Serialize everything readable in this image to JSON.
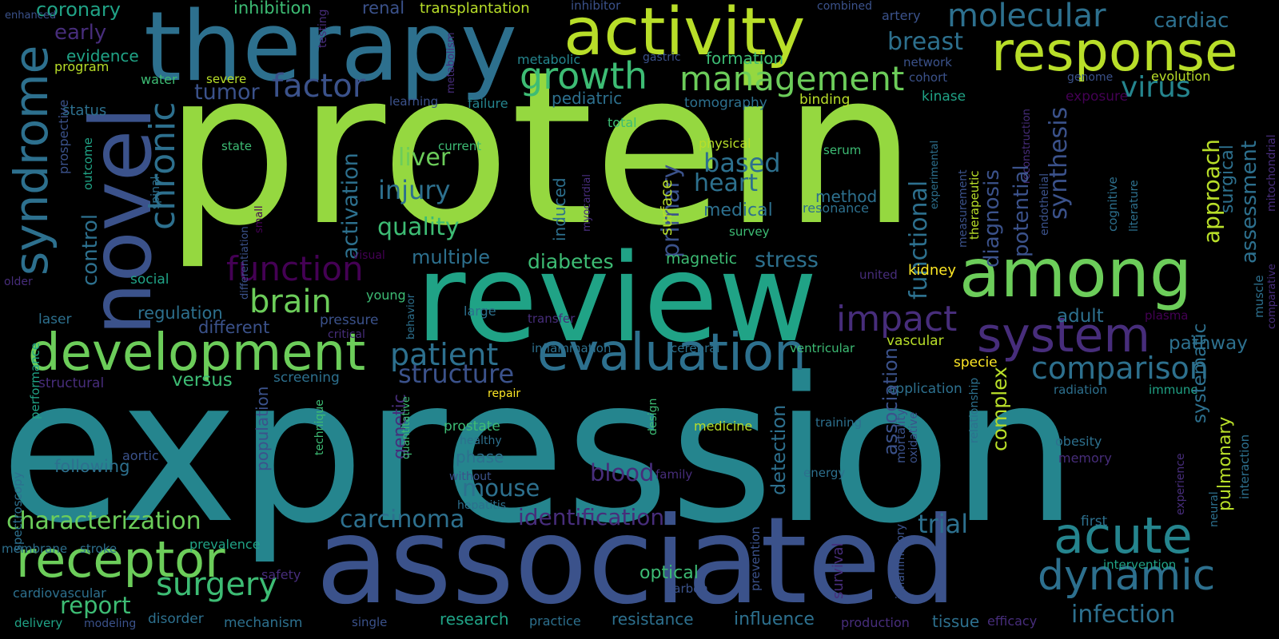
{
  "palette": {
    "lime": "#95d840",
    "green": "#6ccd5a",
    "light_green": "#b8de29",
    "yellow": "#fde725",
    "teal": "#25858e",
    "blue_teal": "#2d708e",
    "blue": "#3b528b",
    "indigo": "#472d7b",
    "purple": "#440154",
    "aqua": "#20a386",
    "mint": "#3dbc74",
    "background": "#000000"
  },
  "words": [
    {
      "text": "protein",
      "color": "lime"
    },
    {
      "text": "expression",
      "color": "teal"
    },
    {
      "text": "review",
      "color": "aqua"
    },
    {
      "text": "associated",
      "color": "blue"
    },
    {
      "text": "therapy",
      "color": "blue_teal"
    },
    {
      "text": "novel",
      "color": "blue"
    },
    {
      "text": "activity",
      "color": "light_green"
    },
    {
      "text": "response",
      "color": "light_green"
    },
    {
      "text": "among",
      "color": "green"
    },
    {
      "text": "development",
      "color": "green"
    },
    {
      "text": "evaluation",
      "color": "blue_teal"
    },
    {
      "text": "system",
      "color": "indigo"
    },
    {
      "text": "molecular",
      "color": "blue_teal"
    },
    {
      "text": "syndrome",
      "color": "blue_teal"
    },
    {
      "text": "chronic",
      "color": "blue_teal"
    },
    {
      "text": "growth",
      "color": "mint"
    },
    {
      "text": "management",
      "color": "green"
    },
    {
      "text": "factor",
      "color": "blue"
    },
    {
      "text": "receptor",
      "color": "green"
    },
    {
      "text": "acute",
      "color": "teal"
    },
    {
      "text": "dynamic",
      "color": "blue_teal"
    },
    {
      "text": "function",
      "color": "purple"
    },
    {
      "text": "impact",
      "color": "indigo"
    },
    {
      "text": "brain",
      "color": "green"
    },
    {
      "text": "patient",
      "color": "blue_teal"
    },
    {
      "text": "structure",
      "color": "blue"
    },
    {
      "text": "comparison",
      "color": "blue_teal"
    },
    {
      "text": "surgery",
      "color": "mint"
    },
    {
      "text": "characterization",
      "color": "green"
    },
    {
      "text": "carcinoma",
      "color": "blue_teal"
    },
    {
      "text": "identification",
      "color": "indigo"
    },
    {
      "text": "breast",
      "color": "blue_teal"
    },
    {
      "text": "tumor",
      "color": "blue"
    },
    {
      "text": "early",
      "color": "indigo"
    },
    {
      "text": "coronary",
      "color": "aqua"
    },
    {
      "text": "inhibition",
      "color": "mint"
    },
    {
      "text": "renal",
      "color": "blue"
    },
    {
      "text": "transplantation",
      "color": "light_green"
    },
    {
      "text": "inhibitor",
      "color": "blue"
    },
    {
      "text": "combined",
      "color": "blue"
    },
    {
      "text": "artery",
      "color": "blue"
    },
    {
      "text": "cardiac",
      "color": "blue_teal"
    },
    {
      "text": "enhanced",
      "color": "blue"
    },
    {
      "text": "testing",
      "color": "indigo"
    },
    {
      "text": "evidence",
      "color": "aqua"
    },
    {
      "text": "program",
      "color": "light_green"
    },
    {
      "text": "water",
      "color": "mint"
    },
    {
      "text": "metabolic",
      "color": "teal"
    },
    {
      "text": "gastric",
      "color": "blue"
    },
    {
      "text": "formation",
      "color": "mint"
    },
    {
      "text": "metabolism",
      "color": "indigo"
    },
    {
      "text": "network",
      "color": "blue"
    },
    {
      "text": "cohort",
      "color": "blue"
    },
    {
      "text": "genome",
      "color": "blue"
    },
    {
      "text": "evolution",
      "color": "light_green"
    },
    {
      "text": "exposure",
      "color": "purple"
    },
    {
      "text": "virus",
      "color": "teal"
    },
    {
      "text": "status",
      "color": "blue_teal"
    },
    {
      "text": "severe",
      "color": "light_green"
    },
    {
      "text": "learning",
      "color": "blue"
    },
    {
      "text": "failure",
      "color": "teal"
    },
    {
      "text": "pediatric",
      "color": "blue_teal"
    },
    {
      "text": "tomography",
      "color": "blue_teal"
    },
    {
      "text": "binding",
      "color": "light_green"
    },
    {
      "text": "kinase",
      "color": "aqua"
    },
    {
      "text": "prospective",
      "color": "blue"
    },
    {
      "text": "total",
      "color": "mint"
    },
    {
      "text": "functional",
      "color": "blue_teal"
    },
    {
      "text": "synthesis",
      "color": "blue"
    },
    {
      "text": "reconstruction",
      "color": "indigo"
    },
    {
      "text": "approach",
      "color": "light_green"
    },
    {
      "text": "surgical",
      "color": "blue_teal"
    },
    {
      "text": "assessment",
      "color": "blue_teal"
    },
    {
      "text": "mitochondrial",
      "color": "indigo"
    },
    {
      "text": "outcome",
      "color": "aqua"
    },
    {
      "text": "state",
      "color": "mint"
    },
    {
      "text": "current",
      "color": "mint"
    },
    {
      "text": "physical",
      "color": "light_green"
    },
    {
      "text": "serum",
      "color": "mint"
    },
    {
      "text": "liver",
      "color": "green"
    },
    {
      "text": "based",
      "color": "blue_teal"
    },
    {
      "text": "heart",
      "color": "blue_teal"
    },
    {
      "text": "injury",
      "color": "blue_teal"
    },
    {
      "text": "induced",
      "color": "blue_teal"
    },
    {
      "text": "primary",
      "color": "blue"
    },
    {
      "text": "surface",
      "color": "light_green"
    },
    {
      "text": "experimental",
      "color": "blue_teal"
    },
    {
      "text": "endothelial",
      "color": "blue"
    },
    {
      "text": "cognitive",
      "color": "blue_teal"
    },
    {
      "text": "literature",
      "color": "blue_teal"
    },
    {
      "text": "activation",
      "color": "blue_teal"
    },
    {
      "text": "potential",
      "color": "blue"
    },
    {
      "text": "diagnosis",
      "color": "blue"
    },
    {
      "text": "spinal",
      "color": "blue_teal"
    },
    {
      "text": "small",
      "color": "purple"
    },
    {
      "text": "differentiation",
      "color": "blue"
    },
    {
      "text": "quality",
      "color": "mint"
    },
    {
      "text": "myocardial",
      "color": "indigo"
    },
    {
      "text": "medical",
      "color": "blue_teal"
    },
    {
      "text": "method",
      "color": "blue_teal"
    },
    {
      "text": "resonance",
      "color": "blue_teal"
    },
    {
      "text": "measurement",
      "color": "blue"
    },
    {
      "text": "therapeutic",
      "color": "light_green"
    },
    {
      "text": "survey",
      "color": "mint"
    },
    {
      "text": "control",
      "color": "blue_teal"
    },
    {
      "text": "visual",
      "color": "purple"
    },
    {
      "text": "multiple",
      "color": "blue_teal"
    },
    {
      "text": "diabetes",
      "color": "mint"
    },
    {
      "text": "magnetic",
      "color": "mint"
    },
    {
      "text": "stress",
      "color": "blue_teal"
    },
    {
      "text": "muscle",
      "color": "blue_teal"
    },
    {
      "text": "comparative",
      "color": "indigo"
    },
    {
      "text": "social",
      "color": "aqua"
    },
    {
      "text": "older",
      "color": "indigo"
    },
    {
      "text": "united",
      "color": "indigo"
    },
    {
      "text": "kidney",
      "color": "yellow"
    },
    {
      "text": "regulation",
      "color": "blue_teal"
    },
    {
      "text": "young",
      "color": "mint"
    },
    {
      "text": "large",
      "color": "blue_teal"
    },
    {
      "text": "laser",
      "color": "blue_teal"
    },
    {
      "text": "spectroscopy",
      "color": "blue_teal"
    },
    {
      "text": "performance",
      "color": "aqua"
    },
    {
      "text": "different",
      "color": "blue"
    },
    {
      "text": "pressure",
      "color": "blue"
    },
    {
      "text": "critical",
      "color": "indigo"
    },
    {
      "text": "behavior",
      "color": "blue_teal"
    },
    {
      "text": "transfer",
      "color": "indigo"
    },
    {
      "text": "adult",
      "color": "blue_teal"
    },
    {
      "text": "plasma",
      "color": "purple"
    },
    {
      "text": "vascular",
      "color": "light_green"
    },
    {
      "text": "pathway",
      "color": "blue_teal"
    },
    {
      "text": "inflammation",
      "color": "blue_teal"
    },
    {
      "text": "cerebral",
      "color": "blue_teal"
    },
    {
      "text": "ventricular",
      "color": "mint"
    },
    {
      "text": "structural",
      "color": "indigo"
    },
    {
      "text": "versus",
      "color": "mint"
    },
    {
      "text": "screening",
      "color": "blue_teal"
    },
    {
      "text": "specie",
      "color": "yellow"
    },
    {
      "text": "application",
      "color": "blue_teal"
    },
    {
      "text": "radiation",
      "color": "blue_teal"
    },
    {
      "text": "immune",
      "color": "aqua"
    },
    {
      "text": "repair",
      "color": "yellow"
    },
    {
      "text": "genetic",
      "color": "indigo"
    },
    {
      "text": "quantitative",
      "color": "mint"
    },
    {
      "text": "complex",
      "color": "light_green"
    },
    {
      "text": "relationship",
      "color": "blue_teal"
    },
    {
      "text": "detection",
      "color": "blue_teal"
    },
    {
      "text": "association",
      "color": "blue"
    },
    {
      "text": "mortality",
      "color": "blue"
    },
    {
      "text": "oxidative",
      "color": "blue"
    },
    {
      "text": "training",
      "color": "blue_teal"
    },
    {
      "text": "design",
      "color": "mint"
    },
    {
      "text": "medicine",
      "color": "light_green"
    },
    {
      "text": "systematic",
      "color": "blue_teal"
    },
    {
      "text": "pulmonary",
      "color": "light_green"
    },
    {
      "text": "obesity",
      "color": "blue_teal"
    },
    {
      "text": "memory",
      "color": "indigo"
    },
    {
      "text": "prostate",
      "color": "mint"
    },
    {
      "text": "healthy",
      "color": "blue_teal"
    },
    {
      "text": "phase",
      "color": "blue_teal"
    },
    {
      "text": "without",
      "color": "blue"
    },
    {
      "text": "technique",
      "color": "mint"
    },
    {
      "text": "population",
      "color": "blue"
    },
    {
      "text": "following",
      "color": "blue_teal"
    },
    {
      "text": "aortic",
      "color": "blue"
    },
    {
      "text": "family",
      "color": "indigo"
    },
    {
      "text": "energy",
      "color": "blue_teal"
    },
    {
      "text": "experience",
      "color": "indigo"
    },
    {
      "text": "interaction",
      "color": "blue_teal"
    },
    {
      "text": "mouse",
      "color": "blue_teal"
    },
    {
      "text": "blood",
      "color": "indigo"
    },
    {
      "text": "hepatitis",
      "color": "blue_teal"
    },
    {
      "text": "first",
      "color": "blue_teal"
    },
    {
      "text": "neural",
      "color": "blue_teal"
    },
    {
      "text": "trial",
      "color": "blue_teal"
    },
    {
      "text": "membrane",
      "color": "blue_teal"
    },
    {
      "text": "stroke",
      "color": "blue_teal"
    },
    {
      "text": "prevalence",
      "color": "aqua"
    },
    {
      "text": "cardiovascular",
      "color": "blue_teal"
    },
    {
      "text": "safety",
      "color": "indigo"
    },
    {
      "text": "report",
      "color": "mint"
    },
    {
      "text": "optical",
      "color": "mint"
    },
    {
      "text": "carbon",
      "color": "blue"
    },
    {
      "text": "prevention",
      "color": "blue"
    },
    {
      "text": "survival",
      "color": "indigo"
    },
    {
      "text": "inflammatory",
      "color": "blue"
    },
    {
      "text": "intervention",
      "color": "aqua"
    },
    {
      "text": "delivery",
      "color": "aqua"
    },
    {
      "text": "modeling",
      "color": "blue"
    },
    {
      "text": "disorder",
      "color": "blue_teal"
    },
    {
      "text": "mechanism",
      "color": "blue_teal"
    },
    {
      "text": "single",
      "color": "blue"
    },
    {
      "text": "research",
      "color": "aqua"
    },
    {
      "text": "practice",
      "color": "blue_teal"
    },
    {
      "text": "resistance",
      "color": "blue_teal"
    },
    {
      "text": "influence",
      "color": "blue_teal"
    },
    {
      "text": "production",
      "color": "indigo"
    },
    {
      "text": "tissue",
      "color": "blue_teal"
    },
    {
      "text": "efficacy",
      "color": "indigo"
    },
    {
      "text": "infection",
      "color": "blue_teal"
    }
  ]
}
